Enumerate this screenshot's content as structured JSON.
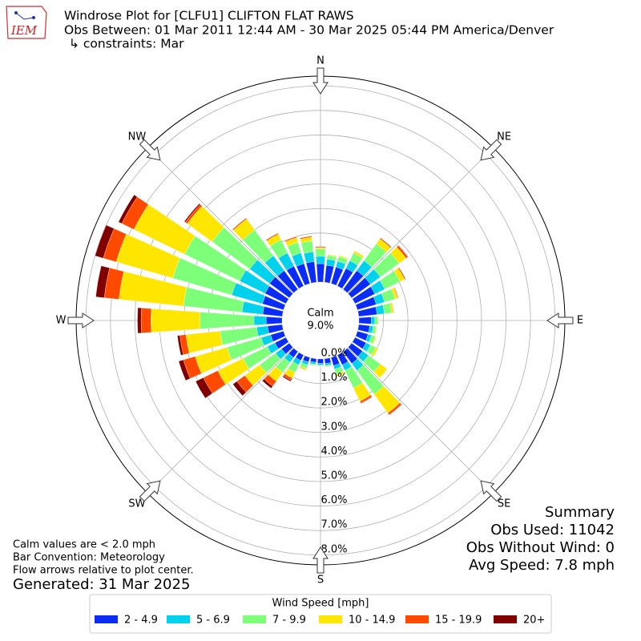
{
  "logo_text": "IEM",
  "chart_data": {
    "type": "windrose",
    "title": "Windrose Plot for [CLFU1] CLIFTON FLAT RAWS",
    "subtitle": "Obs Between: 01 Mar 2011 12:44 AM - 30 Mar 2025 05:44 PM America/Denver",
    "constraints": "↳ constraints: Mar",
    "calm": {
      "label": "Calm",
      "text": "9.0%"
    },
    "categories": [
      null,
      null,
      null,
      null,
      null,
      null,
      null,
      null,
      null,
      null,
      null,
      null,
      null,
      null,
      null,
      null,
      null,
      null,
      null,
      null,
      null,
      null,
      null,
      null,
      null,
      null,
      null,
      null,
      null,
      null,
      null,
      null,
      null,
      null,
      null,
      null
    ],
    "xticks": [
      {
        "value": 0,
        "label": "N"
      },
      {
        "value": 45,
        "label": "NE"
      },
      {
        "value": 90,
        "label": "E"
      },
      {
        "value": 135,
        "label": "SE"
      },
      {
        "value": 180,
        "label": "S"
      },
      {
        "value": 225,
        "label": "SW"
      },
      {
        "value": 270,
        "label": "W"
      },
      {
        "value": 315,
        "label": "NW"
      }
    ],
    "rlim": [
      0,
      8.4
    ],
    "rticks": [
      {
        "value": 0,
        "label": "0.0%"
      },
      {
        "value": 1,
        "label": "1.0%"
      },
      {
        "value": 2,
        "label": "2.0%"
      },
      {
        "value": 3,
        "label": "3.0%"
      },
      {
        "value": 4,
        "label": "4.0%"
      },
      {
        "value": 5,
        "label": "5.0%"
      },
      {
        "value": 6,
        "label": "6.0%"
      },
      {
        "value": 7,
        "label": "7.0%"
      },
      {
        "value": 8,
        "label": "8.0%"
      }
    ],
    "grid": true,
    "legend_title": "Wind Speed [mph]",
    "series": [
      {
        "name": "2 - 4.9",
        "color": "#0a2cf5",
        "values": [
          0.75,
          0.7,
          0.7,
          0.8,
          0.95,
          0.95,
          0.9,
          0.8,
          0.75,
          0.5,
          0.45,
          0.45,
          0.5,
          0.55,
          0.6,
          0.45,
          0.35,
          0.2,
          0.18,
          0.15,
          0.2,
          0.25,
          0.3,
          0.4,
          0.5,
          0.55,
          0.6,
          0.65,
          0.8,
          0.9,
          0.95,
          1.0,
          0.95,
          0.9,
          0.85,
          0.85
        ]
      },
      {
        "name": "5 - 6.9",
        "color": "#00d2ee",
        "values": [
          0.3,
          0.25,
          0.25,
          0.35,
          0.5,
          0.5,
          0.45,
          0.35,
          0.3,
          0.15,
          0.15,
          0.15,
          0.2,
          0.3,
          0.35,
          0.25,
          0.15,
          0.08,
          0.07,
          0.08,
          0.12,
          0.2,
          0.25,
          0.3,
          0.35,
          0.4,
          0.45,
          0.5,
          0.85,
          1.3,
          1.15,
          1.0,
          0.75,
          0.6,
          0.45,
          0.4
        ]
      },
      {
        "name": "7 - 9.9",
        "color": "#7dff7a",
        "values": [
          0.3,
          0.15,
          0.2,
          0.35,
          0.85,
          0.95,
          0.7,
          0.45,
          0.3,
          0.12,
          0.12,
          0.15,
          0.25,
          0.6,
          1.2,
          0.8,
          0.2,
          0.05,
          0.04,
          0.05,
          0.15,
          0.35,
          0.5,
          0.8,
          1.1,
          1.45,
          1.5,
          2.2,
          2.4,
          2.5,
          2.5,
          1.9,
          1.3,
          0.6,
          0.45,
          0.45
        ]
      },
      {
        "name": "10 - 14.9",
        "color": "#ffe600",
        "values": [
          0.05,
          0.04,
          0.05,
          0.1,
          0.25,
          0.35,
          0.2,
          0.12,
          0.08,
          0.03,
          0.03,
          0.05,
          0.1,
          0.35,
          0.95,
          0.6,
          0.1,
          0.02,
          0.01,
          0.02,
          0.06,
          0.25,
          0.45,
          0.75,
          1.15,
          1.35,
          1.4,
          2.0,
          2.65,
          2.4,
          2.3,
          1.25,
          0.55,
          0.25,
          0.2,
          0.15
        ]
      },
      {
        "name": "15 - 19.9",
        "color": "#ff4a00",
        "values": [
          0.03,
          0.01,
          0,
          0,
          0.05,
          0.08,
          0.05,
          0.03,
          0.02,
          0,
          0,
          0,
          0,
          0,
          0.08,
          0.08,
          0,
          0,
          0,
          0,
          0.02,
          0.1,
          0.25,
          0.4,
          0.65,
          0.5,
          0.25,
          0.4,
          0.6,
          0.55,
          0.55,
          0.1,
          0.05,
          0.05,
          0.05,
          0.05
        ]
      },
      {
        "name": "20+",
        "color": "#800000",
        "values": [
          0.02,
          0,
          0,
          0,
          0,
          0.02,
          0,
          0,
          0,
          0,
          0,
          0,
          0,
          0,
          0.02,
          0.02,
          0,
          0,
          0,
          0,
          0,
          0.05,
          0.1,
          0.2,
          0.35,
          0.2,
          0.1,
          0.15,
          0.35,
          0.35,
          0.15,
          0.05,
          0,
          0,
          0,
          0
        ]
      }
    ],
    "summary": [
      "Summary",
      "Obs Used: 11042",
      "Obs Without Wind: 0",
      "Avg Speed: 7.8 mph"
    ],
    "notes": [
      "Calm values are < 2.0 mph",
      "Bar Convention: Meteorology",
      "Flow arrows relative to plot center."
    ],
    "generated": "Generated: 31 Mar 2025"
  }
}
